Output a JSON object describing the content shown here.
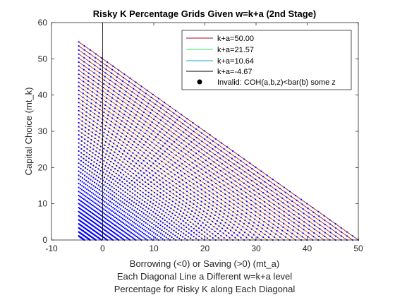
{
  "chart_data": {
    "type": "line",
    "title": "Risky K Percentage Grids Given w=k+a (2nd Stage)",
    "xlabel_lines": [
      "Borrowing (<0) or Saving (>0) (mt_a)",
      "Each Diagonal Line a Different w=k+a level",
      "Percentage for Risky K along Each Diagonal"
    ],
    "ylabel": "Capital Choice (mt_k)",
    "xlim": [
      -10,
      50
    ],
    "ylim": [
      0,
      60
    ],
    "xticks": [
      -10,
      0,
      10,
      20,
      30,
      40,
      50
    ],
    "yticks": [
      0,
      10,
      20,
      30,
      40,
      50,
      60
    ],
    "borrow_bound": -4.67,
    "w_min": -4.67,
    "w_max": 50,
    "diagonal_count": 50,
    "points_per_diagonal": 50,
    "legend": {
      "location": "top-right",
      "entries": [
        {
          "label": "k+a=50.00",
          "color": "#a0141e",
          "marker": "line"
        },
        {
          "label": "k+a=21.57",
          "color": "#3ddc6a",
          "marker": "line"
        },
        {
          "label": "k+a=10.64",
          "color": "#1aa6c8",
          "marker": "line"
        },
        {
          "label": "k+a=-4.67",
          "color": "#000000",
          "marker": "line"
        },
        {
          "label": "Invalid: COH(a,b,z)<bar(b) some z",
          "color": "#000000",
          "marker": "dot"
        }
      ]
    },
    "colors": {
      "points": "#0000ff",
      "line_top": "#a0141e",
      "line_bottom": "#ffd21e",
      "zero_line": "#000000"
    }
  }
}
